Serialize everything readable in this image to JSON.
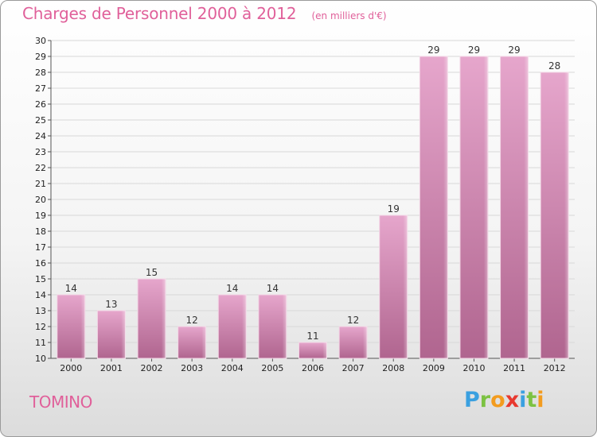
{
  "header": {
    "title": "Charges de Personnel 2000 à 2012",
    "unit": "(en milliers d'€)"
  },
  "footer": {
    "place": "TOMINO",
    "brand": [
      "P",
      "r",
      "o",
      "x",
      "i",
      "t",
      "i"
    ]
  },
  "colors": {
    "title": "#e0609a",
    "bar_top": "#e6a6cc",
    "bar_bottom": "#b0658f",
    "grid": "#d8d8d8"
  },
  "chart_data": {
    "type": "bar",
    "title": "Charges de Personnel 2000 à 2012",
    "subtitle": "(en milliers d'€)",
    "categories": [
      "2000",
      "2001",
      "2002",
      "2003",
      "2004",
      "2005",
      "2006",
      "2007",
      "2008",
      "2009",
      "2010",
      "2011",
      "2012"
    ],
    "values": [
      14,
      13,
      15,
      12,
      14,
      14,
      11,
      12,
      19,
      29,
      29,
      29,
      28
    ],
    "ylim": [
      10,
      30
    ],
    "yticks": [
      10,
      11,
      12,
      13,
      14,
      15,
      16,
      17,
      18,
      19,
      20,
      21,
      22,
      23,
      24,
      25,
      26,
      27,
      28,
      29,
      30
    ],
    "xlabel": "",
    "ylabel": "",
    "grid": true,
    "legend": "none"
  }
}
